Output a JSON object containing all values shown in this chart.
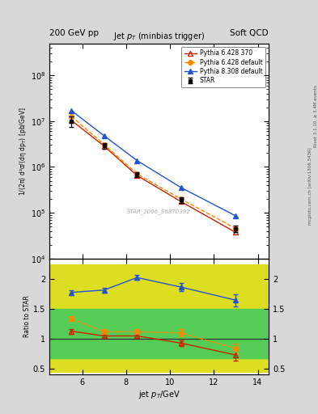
{
  "header_left": "200 GeV pp",
  "header_right": "Soft QCD",
  "title_plot": "Jet $p_T$ (minbias trigger)",
  "ylabel_main": "1/(2π) d²σ/(dη dp$_T$) [pb/GeV]",
  "ylabel_ratio": "Ratio to STAR",
  "xlabel": "jet $p_T$/GeV",
  "watermark": "STAR_2006_S6870392",
  "rivet_text": "Rivet 3.1.10, ≥ 3.4M events",
  "arxiv_text": "[arXiv:1306.3436]",
  "mcplots_text": "mcplots.cern.ch",
  "star_x": [
    5.5,
    7.0,
    8.5,
    10.5,
    13.0
  ],
  "star_y": [
    10000000.0,
    2900000.0,
    680000.0,
    190000.0,
    45000.0
  ],
  "star_yerr": [
    2500000.0,
    400000.0,
    90000.0,
    25000.0,
    8000.0
  ],
  "star_color": "#000000",
  "star_label": "STAR",
  "p6428_370_x": [
    5.5,
    7.0,
    8.5,
    10.5,
    13.0
  ],
  "p6428_370_y": [
    10500000.0,
    2850000.0,
    650000.0,
    175000.0,
    37000.0
  ],
  "p6428_370_color": "#cc2200",
  "p6428_370_label": "Pythia 6.428 370",
  "p6428_def_x": [
    5.5,
    7.0,
    8.5,
    10.5,
    13.0
  ],
  "p6428_def_y": [
    12800000.0,
    3100000.0,
    710000.0,
    200000.0,
    45000.0
  ],
  "p6428_def_color": "#ff8800",
  "p6428_def_label": "Pythia 6.428 default",
  "p8308_def_x": [
    5.5,
    7.0,
    8.5,
    10.5,
    13.0
  ],
  "p8308_def_y": [
    17200000.0,
    4800000.0,
    1380000.0,
    355000.0,
    85000.0
  ],
  "p8308_def_color": "#2255cc",
  "p8308_def_label": "Pythia 8.308 default",
  "ratio_p6428_370": [
    1.13,
    1.05,
    1.05,
    0.93,
    0.73
  ],
  "ratio_p6428_370_yerr": [
    0.04,
    0.04,
    0.04,
    0.05,
    0.1
  ],
  "ratio_p6428_def": [
    1.34,
    1.12,
    1.12,
    1.1,
    0.84
  ],
  "ratio_p6428_def_yerr": [
    0.04,
    0.04,
    0.04,
    0.06,
    0.08
  ],
  "ratio_p8308_def": [
    1.78,
    1.82,
    2.03,
    1.87,
    1.65
  ],
  "ratio_p8308_def_yerr": [
    0.04,
    0.04,
    0.04,
    0.07,
    0.1
  ],
  "ylim_main": [
    10000.0,
    500000000.0
  ],
  "ylim_ratio": [
    0.4,
    2.35
  ],
  "xlim": [
    4.5,
    14.5
  ],
  "xticks": [
    6,
    8,
    10,
    12,
    14
  ],
  "green_band_y1": 0.67,
  "green_band_y2": 1.5,
  "yellow_band_y1": 0.45,
  "yellow_band_y2": 2.25,
  "green_color": "#55cc55",
  "yellow_color": "#dddd22",
  "bg_color": "#d8d8d8",
  "plot_bg": "#ffffff"
}
